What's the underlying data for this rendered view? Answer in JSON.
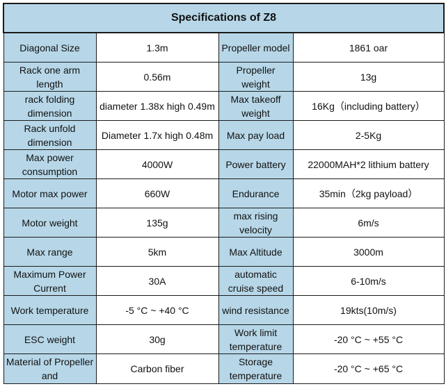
{
  "title": "Specifications of Z8",
  "rows": [
    {
      "l1": "Diagonal Size",
      "v1": "1.3m",
      "l2": "Propeller model",
      "v2": "1861 oar"
    },
    {
      "l1": "Rack one arm length",
      "v1": "0.56m",
      "l2": "Propeller weight",
      "v2": "13g"
    },
    {
      "l1": "rack folding dimension",
      "v1": "diameter 1.38x high 0.49m",
      "l2": "Max takeoff weight",
      "v2": "16Kg（including battery）"
    },
    {
      "l1": "Rack unfold dimension",
      "v1": "Diameter 1.7x high 0.48m",
      "l2": "Max pay load",
      "v2": "2-5Kg"
    },
    {
      "l1": "Max power consumption",
      "v1": "4000W",
      "l2": "Power battery",
      "v2": "22000MAH*2 lithium battery"
    },
    {
      "l1": "Motor max power",
      "v1": "660W",
      "l2": "Endurance",
      "v2": "35min（2kg payload）"
    },
    {
      "l1": "Motor weight",
      "v1": "135g",
      "l2": "max rising velocity",
      "v2": "6m/s"
    },
    {
      "l1": "Max range",
      "v1": "5km",
      "l2": "Max Altitude",
      "v2": "3000m"
    },
    {
      "l1": "Maximum Power Current",
      "v1": "30A",
      "l2": "automatic cruise speed",
      "v2": "6-10m/s"
    },
    {
      "l1": "Work temperature",
      "v1": "-5 °C ~ +40 °C",
      "l2": "wind resistance",
      "v2": "19kts(10m/s)"
    },
    {
      "l1": "ESC weight",
      "v1": "30g",
      "l2": "Work limit temperature",
      "v2": "-20 °C ~ +55 °C"
    },
    {
      "l1": "Material of Propeller and",
      "v1": "Carbon fiber",
      "l2": "Storage temperature",
      "v2": "-20 °C ~ +65 °C"
    }
  ],
  "colors": {
    "label_bg": "#b7d7e8",
    "value_bg": "#ffffff",
    "border": "#1a1a1a"
  }
}
